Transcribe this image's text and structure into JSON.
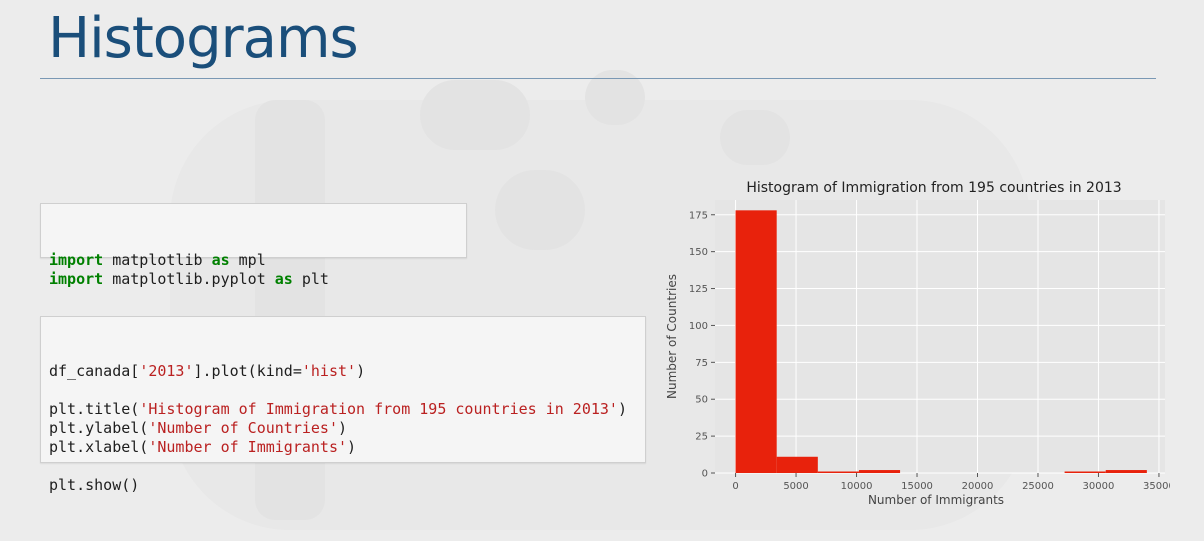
{
  "slide": {
    "title": "Histograms"
  },
  "code_cell_1": {
    "lines": [
      [
        {
          "t": "import",
          "c": "kw"
        },
        {
          "t": " matplotlib ",
          "c": ""
        },
        {
          "t": "as",
          "c": "kw"
        },
        {
          "t": " mpl",
          "c": ""
        }
      ],
      [
        {
          "t": "import",
          "c": "kw"
        },
        {
          "t": " matplotlib.pyplot ",
          "c": ""
        },
        {
          "t": "as",
          "c": "kw"
        },
        {
          "t": " plt",
          "c": ""
        }
      ]
    ]
  },
  "code_cell_2": {
    "lines": [
      [
        {
          "t": "df_canada[",
          "c": ""
        },
        {
          "t": "'2013'",
          "c": "str"
        },
        {
          "t": "].plot(kind=",
          "c": ""
        },
        {
          "t": "'hist'",
          "c": "str"
        },
        {
          "t": ")",
          "c": ""
        }
      ],
      [],
      [
        {
          "t": "plt.title(",
          "c": ""
        },
        {
          "t": "'Histogram of Immigration from 195 countries in 2013'",
          "c": "str"
        },
        {
          "t": ")",
          "c": ""
        }
      ],
      [
        {
          "t": "plt.ylabel(",
          "c": ""
        },
        {
          "t": "'Number of Countries'",
          "c": "str"
        },
        {
          "t": ")",
          "c": ""
        }
      ],
      [
        {
          "t": "plt.xlabel(",
          "c": ""
        },
        {
          "t": "'Number of Immigrants'",
          "c": "str"
        },
        {
          "t": ")",
          "c": ""
        }
      ],
      [],
      [
        {
          "t": "plt.show()",
          "c": ""
        }
      ]
    ]
  },
  "chart_data": {
    "type": "bar",
    "title": "Histogram of Immigration from 195 countries in 2013",
    "xlabel": "Number of Immigrants",
    "ylabel": "Number of Countries",
    "xlim": [
      -1700,
      35500
    ],
    "ylim": [
      0,
      185
    ],
    "xticks": [
      0,
      5000,
      10000,
      15000,
      20000,
      25000,
      30000,
      35000
    ],
    "yticks": [
      0,
      25,
      50,
      75,
      100,
      125,
      150,
      175
    ],
    "bins": [
      {
        "x0": 0,
        "x1": 3400,
        "count": 178
      },
      {
        "x0": 3400,
        "x1": 6800,
        "count": 11
      },
      {
        "x0": 6800,
        "x1": 10200,
        "count": 1
      },
      {
        "x0": 10200,
        "x1": 13600,
        "count": 2
      },
      {
        "x0": 13600,
        "x1": 17000,
        "count": 0
      },
      {
        "x0": 17000,
        "x1": 20400,
        "count": 0
      },
      {
        "x0": 20400,
        "x1": 23800,
        "count": 0
      },
      {
        "x0": 23800,
        "x1": 27200,
        "count": 0
      },
      {
        "x0": 27200,
        "x1": 30600,
        "count": 1
      },
      {
        "x0": 30600,
        "x1": 34000,
        "count": 2
      }
    ],
    "bar_color": "#e8220c",
    "grid": true,
    "background": "#e5e5e5"
  }
}
